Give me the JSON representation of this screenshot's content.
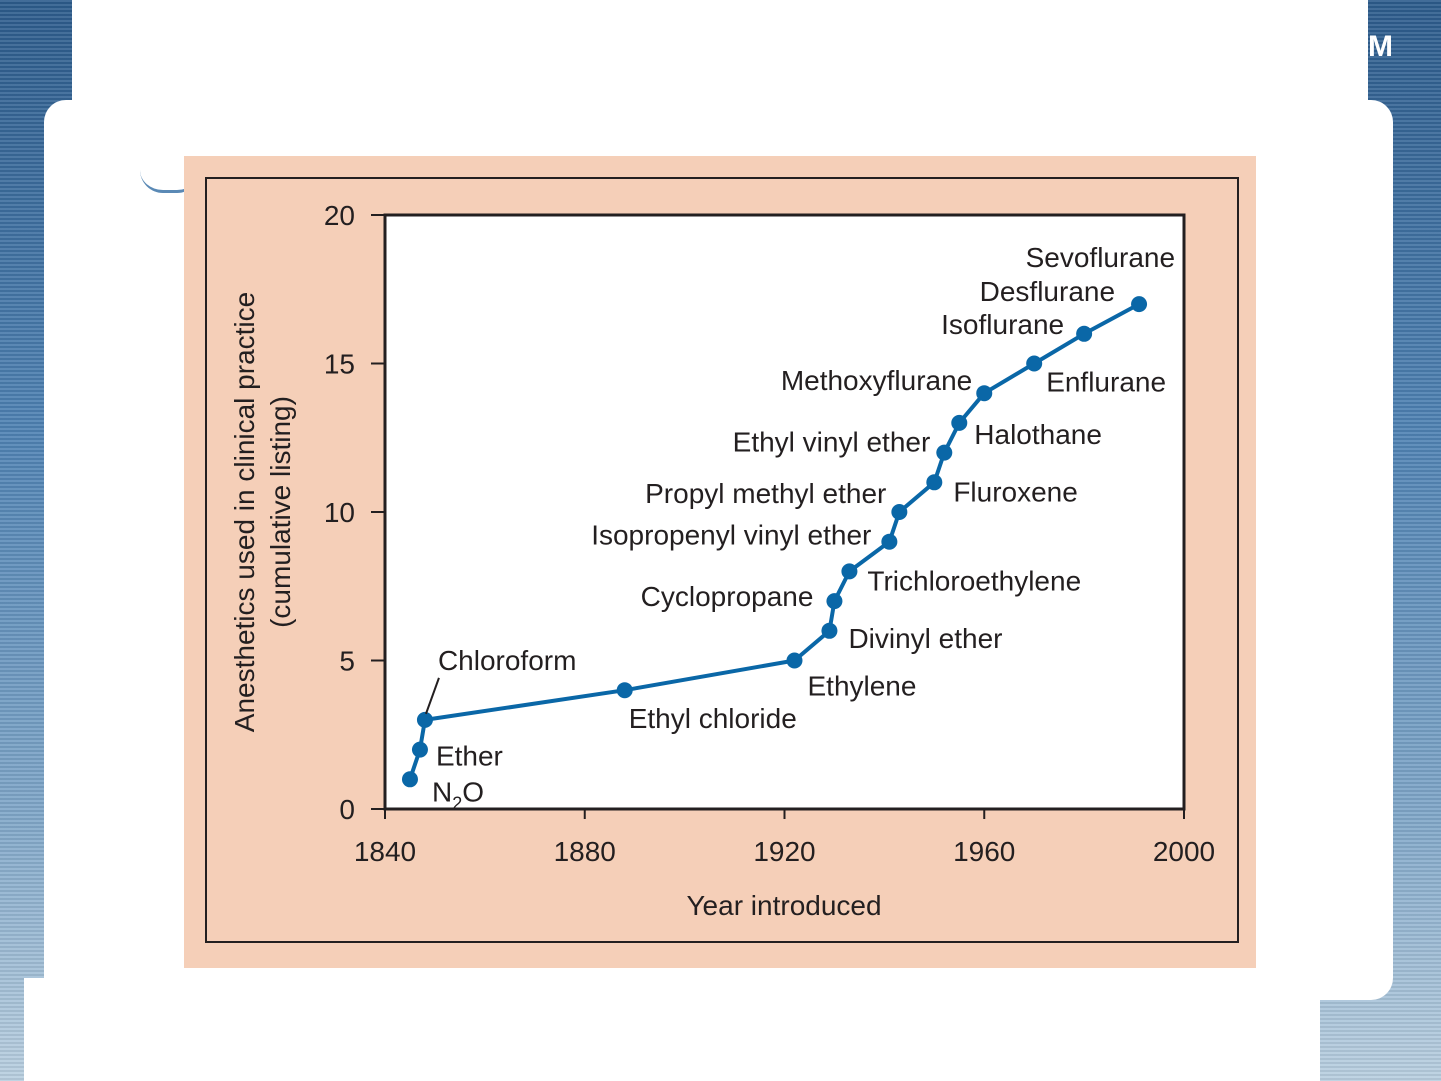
{
  "slide": {
    "corner_letter": "M"
  },
  "colors": {
    "figure_background": "#f5cfb8",
    "plot_background": "#ffffff",
    "series_line": "#0a67a7",
    "text": "#231f20"
  },
  "chart_data": {
    "type": "line",
    "title": "",
    "xlabel": "Year introduced",
    "ylabel_line1": "Anesthetics used in clinical practice",
    "ylabel_line2": "(cumulative listing)",
    "xlim": [
      1840,
      2000
    ],
    "ylim": [
      0,
      20
    ],
    "xticks": [
      1840,
      1880,
      1920,
      1960,
      2000
    ],
    "yticks": [
      0,
      5,
      10,
      15,
      20
    ],
    "grid": false,
    "legend": "none",
    "series": [
      {
        "points": [
          {
            "label": "N2O",
            "x": 1845,
            "y": 1
          },
          {
            "label": "Ether",
            "x": 1847,
            "y": 2
          },
          {
            "label": "Chloroform",
            "x": 1848,
            "y": 3
          },
          {
            "label": "Ethyl chloride",
            "x": 1888,
            "y": 4
          },
          {
            "label": "Ethylene",
            "x": 1922,
            "y": 5
          },
          {
            "label": "Divinyl ether",
            "x": 1929,
            "y": 6
          },
          {
            "label": "Cyclopropane",
            "x": 1930,
            "y": 7
          },
          {
            "label": "Trichloroethylene",
            "x": 1933,
            "y": 8
          },
          {
            "label": "Isopropenyl vinyl ether",
            "x": 1941,
            "y": 9
          },
          {
            "label": "Propyl methyl ether",
            "x": 1943,
            "y": 10
          },
          {
            "label": "Fluroxene",
            "x": 1950,
            "y": 11
          },
          {
            "label": "Ethyl vinyl ether",
            "x": 1952,
            "y": 12
          },
          {
            "label": "Halothane",
            "x": 1955,
            "y": 13
          },
          {
            "label": "Methoxyflurane",
            "x": 1960,
            "y": 14
          },
          {
            "label": "Enflurane",
            "x": 1970,
            "y": 15
          },
          {
            "label": "Isoflurane",
            "x": 1980,
            "y": 16
          },
          {
            "label": "Sevoflurane",
            "x": 1991,
            "y": 17
          },
          {
            "label": "Desflurane",
            "x": 1991,
            "y": 17
          }
        ]
      }
    ]
  }
}
